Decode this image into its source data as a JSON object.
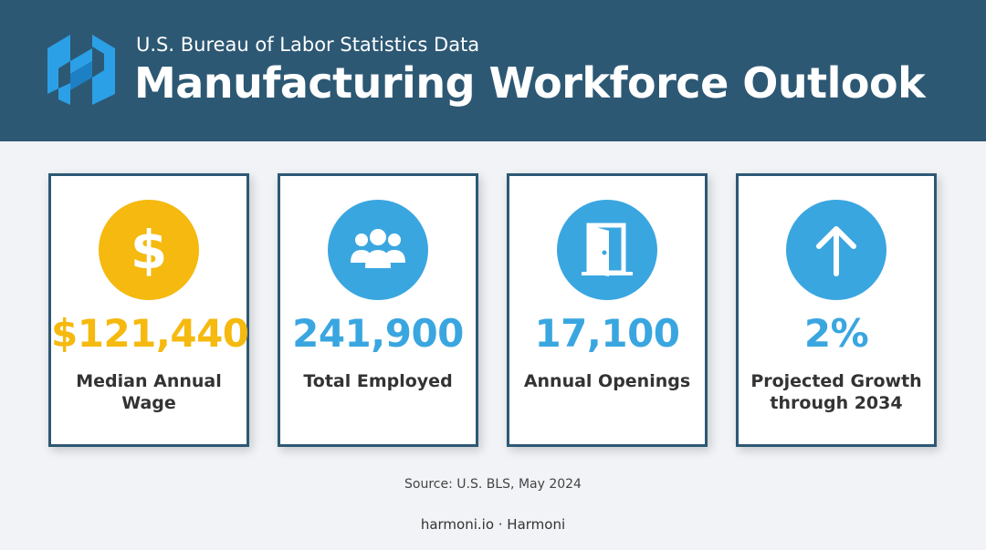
{
  "header": {
    "subtitle": "U.S. Bureau of Labor Statistics Data",
    "title": "Manufacturing Workforce Outlook",
    "logo": "harmoni-h-logo",
    "background_color": "#2d5874"
  },
  "stats": [
    {
      "icon": "dollar-icon",
      "value": "$121,440",
      "label": "Median Annual Wage",
      "color": "#f5b90f"
    },
    {
      "icon": "people-group-icon",
      "value": "241,900",
      "label": "Total Employed",
      "color": "#3aa6e0"
    },
    {
      "icon": "open-door-icon",
      "value": "17,100",
      "label": "Annual Openings",
      "color": "#3aa6e0"
    },
    {
      "icon": "arrow-up-icon",
      "value": "2%",
      "label": "Projected Growth through 2034",
      "color": "#3aa6e0"
    }
  ],
  "source": "Source: U.S. BLS, May 2024",
  "footer": "harmoni.io · Harmoni"
}
